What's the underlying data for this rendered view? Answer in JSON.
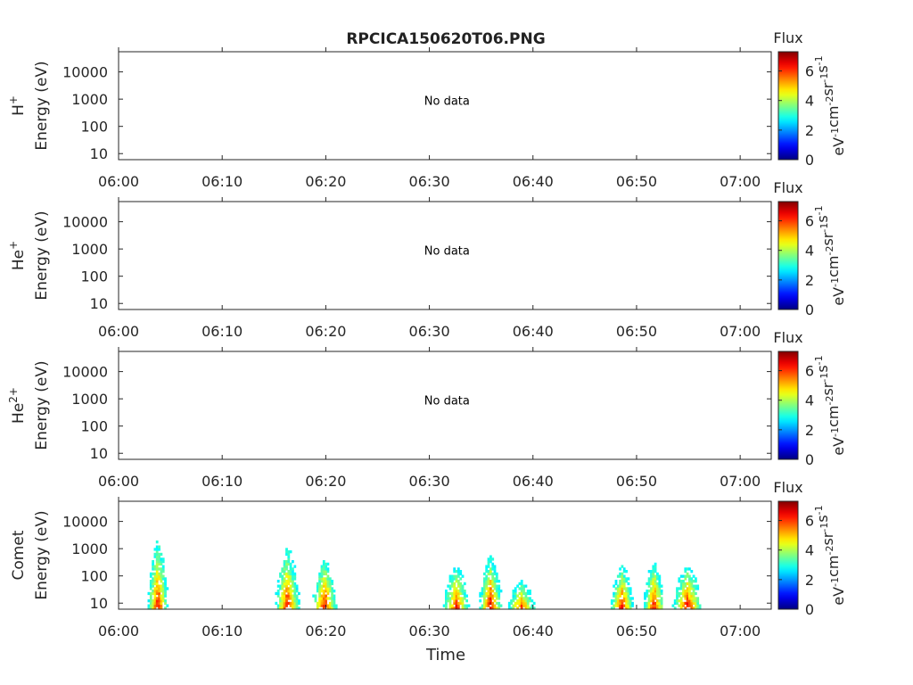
{
  "title": "RPCICA150620T06.PNG",
  "colorbar": {
    "title": "Flux",
    "unit_base": "eV",
    "unit_parts": [
      {
        "t": "eV",
        "s": "-1"
      },
      {
        "t": "cm",
        "s": "-2"
      },
      {
        "t": "sr",
        "s": "-1"
      },
      {
        "t": "s",
        "s": "-1"
      }
    ],
    "ticks": [
      "0",
      "2",
      "4",
      "6"
    ],
    "range": [
      0,
      7.3
    ],
    "colormap": "jet"
  },
  "x_axis": {
    "label": "Time",
    "ticks": [
      "06:00",
      "06:10",
      "06:20",
      "06:30",
      "06:40",
      "06:50",
      "07:00"
    ],
    "range_minutes": [
      0,
      63
    ]
  },
  "y_axis": {
    "label": "Energy (eV)",
    "scale": "log",
    "ticks": [
      "10",
      "100",
      "1000",
      "10000"
    ],
    "range_eV": [
      6,
      55000
    ]
  },
  "chart_data": [
    {
      "type": "heatmap",
      "species": "H",
      "species_sup": "+",
      "message": "No data",
      "cells": []
    },
    {
      "type": "heatmap",
      "species": "He",
      "species_sup": "+",
      "message": "No data",
      "cells": []
    },
    {
      "type": "heatmap",
      "species": "He",
      "species_sup": "2+",
      "message": "No data",
      "cells": []
    },
    {
      "type": "heatmap",
      "species": "Comet",
      "species_sup": "",
      "message": "",
      "bursts": [
        {
          "t": 3.7,
          "width": 1.4,
          "emax": 1700,
          "peak": 7.0
        },
        {
          "t": 16.2,
          "width": 1.8,
          "emax": 900,
          "peak": 7.0
        },
        {
          "t": 19.8,
          "width": 1.8,
          "emax": 400,
          "peak": 7.0
        },
        {
          "t": 32.5,
          "width": 2.0,
          "emax": 200,
          "peak": 6.8
        },
        {
          "t": 35.8,
          "width": 1.6,
          "emax": 450,
          "peak": 7.1
        },
        {
          "t": 38.8,
          "width": 2.4,
          "emax": 60,
          "peak": 6.5
        },
        {
          "t": 48.5,
          "width": 1.6,
          "emax": 200,
          "peak": 7.0
        },
        {
          "t": 51.6,
          "width": 1.4,
          "emax": 300,
          "peak": 7.0
        },
        {
          "t": 54.8,
          "width": 2.4,
          "emax": 200,
          "peak": 7.0
        }
      ]
    }
  ]
}
